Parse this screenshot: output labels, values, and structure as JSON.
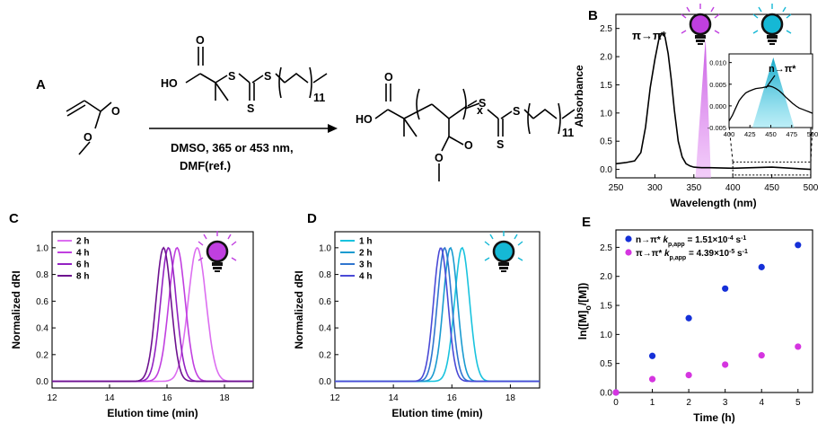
{
  "colors": {
    "purple": "#c03fe0",
    "purple_light": "#dd7cf2",
    "cyan": "#15b8d5",
    "blue": "#1530d8",
    "magenta": "#d535e0",
    "c_curves": [
      "#dc6ef0",
      "#c13fe0",
      "#9322c2",
      "#6d128f"
    ],
    "d_curves": [
      "#19c3de",
      "#1a9bd0",
      "#3075cf",
      "#4a4ad6"
    ]
  },
  "panel_labels": {
    "a": "A",
    "b": "B",
    "c": "C",
    "d": "D",
    "e": "E"
  },
  "scheme": {
    "monomer_o1": "O",
    "monomer_o2": "O",
    "cta_ho": "HO",
    "cta_o": "O",
    "cta_s1": "S",
    "cta_s2": "S",
    "cta_s3": "S",
    "cta_sub": "11",
    "conditions_line1": "DMSO, 365 or 453 nm,",
    "conditions_line2": "DMF(ref.)",
    "prod_ho": "HO",
    "prod_o1": "O",
    "prod_o2": "O",
    "prod_o3": "O",
    "prod_s1": "S",
    "prod_s2": "S",
    "prod_s3": "S",
    "prod_x": "x",
    "prod_sub": "11"
  },
  "icons": [
    "purple-lightbulb-icon",
    "cyan-lightbulb-icon"
  ],
  "chart_data": [
    {
      "panel": "B",
      "type": "line",
      "xlabel": "Wavelength (nm)",
      "ylabel": "Absorbance",
      "xlim": [
        250,
        500
      ],
      "ylim": [
        -0.15,
        2.75
      ],
      "xticks": [
        "250",
        "300",
        "350",
        "400",
        "450",
        "500"
      ],
      "yticks": [
        "0.0",
        "0.5",
        "1.0",
        "1.5",
        "2.0",
        "2.5"
      ],
      "annotations": [
        "π→π*",
        "n→π*"
      ],
      "emission_bands": [
        {
          "center": 365,
          "color": "purple"
        },
        {
          "center": 453,
          "color": "cyan"
        }
      ],
      "series": [
        {
          "name": "Absorbance",
          "x": [
            250,
            262,
            274,
            282,
            288,
            294,
            300,
            305,
            309,
            313,
            317,
            321,
            325,
            330,
            335,
            340,
            345,
            350,
            355,
            360,
            370,
            400,
            450,
            500
          ],
          "y": [
            0.1,
            0.12,
            0.15,
            0.3,
            0.75,
            1.45,
            1.95,
            2.3,
            2.42,
            2.35,
            2.05,
            1.6,
            1.05,
            0.5,
            0.22,
            0.1,
            0.06,
            0.04,
            0.035,
            0.03,
            0.03,
            0.02,
            0.04,
            0.0
          ]
        }
      ],
      "inset": {
        "xlim": [
          400,
          500
        ],
        "ylim": [
          -0.005,
          0.012
        ],
        "xticks": [
          "400",
          "425",
          "450",
          "475",
          "500"
        ],
        "yticks": [
          "-0.005",
          "0.000",
          "0.005",
          "0.010"
        ],
        "x": [
          400,
          404,
          408,
          412,
          416,
          420,
          424,
          428,
          432,
          436,
          440,
          444,
          448,
          452,
          456,
          460,
          464,
          468,
          472,
          476,
          480,
          484,
          488,
          492,
          496,
          500
        ],
        "y": [
          -0.0035,
          -0.0022,
          -0.0005,
          0.0012,
          0.0022,
          0.003,
          0.0034,
          0.0037,
          0.004,
          0.0041,
          0.0042,
          0.0044,
          0.0046,
          0.0044,
          0.004,
          0.0035,
          0.0028,
          0.002,
          0.0013,
          0.0006,
          0.0,
          -0.0005,
          -0.0008,
          -0.0011,
          -0.0014,
          -0.0017
        ]
      }
    },
    {
      "panel": "C",
      "type": "line",
      "xlabel": "Elution time (min)",
      "ylabel": "Normalized dRI",
      "xlim": [
        12,
        19
      ],
      "ylim": [
        -0.05,
        1.12
      ],
      "xticks": [
        "12",
        "14",
        "16",
        "18"
      ],
      "yticks": [
        "0.0",
        "0.2",
        "0.4",
        "0.6",
        "0.8",
        "1.0"
      ],
      "series": [
        {
          "name": "2 h",
          "peak": 17.05,
          "width": 0.46
        },
        {
          "name": "4 h",
          "peak": 16.35,
          "width": 0.42
        },
        {
          "name": "6 h",
          "peak": 16.05,
          "width": 0.4
        },
        {
          "name": "8 h",
          "peak": 15.88,
          "width": 0.39
        }
      ]
    },
    {
      "panel": "D",
      "type": "line",
      "xlabel": "Elution time (min)",
      "ylabel": "Normalized dRI",
      "xlim": [
        12,
        19
      ],
      "ylim": [
        -0.05,
        1.12
      ],
      "xticks": [
        "12",
        "14",
        "16",
        "18"
      ],
      "yticks": [
        "0.0",
        "0.2",
        "0.4",
        "0.6",
        "0.8",
        "1.0"
      ],
      "series": [
        {
          "name": "1 h",
          "peak": 16.35,
          "width": 0.38
        },
        {
          "name": "2 h",
          "peak": 15.95,
          "width": 0.36
        },
        {
          "name": "3 h",
          "peak": 15.75,
          "width": 0.36
        },
        {
          "name": "4 h",
          "peak": 15.62,
          "width": 0.36
        }
      ]
    },
    {
      "panel": "E",
      "type": "scatter",
      "xlabel": "Time (h)",
      "ylabel": "ln([M]o/[M])",
      "ylabel_parts": {
        "pre": "ln([M]",
        "sub": "o",
        "post": "/[M])"
      },
      "xlim": [
        0,
        5.4
      ],
      "ylim": [
        0,
        2.8
      ],
      "xticks": [
        "0",
        "1",
        "2",
        "3",
        "4",
        "5"
      ],
      "yticks": [
        "0.0",
        "0.5",
        "1.0",
        "1.5",
        "2.0",
        "2.5"
      ],
      "legend": [
        {
          "prefix": "n→π* ",
          "k": "k",
          "sub": "p,app",
          "value": " = 1.51×10",
          "exp": "-4",
          "unit": " s",
          "unit_exp": "-1"
        },
        {
          "prefix": "π→π* ",
          "k": "k",
          "sub": "p,app",
          "value": " = 4.39×10",
          "exp": "-5",
          "unit": " s",
          "unit_exp": "-1"
        }
      ],
      "series": [
        {
          "name": "n→π*",
          "x": [
            0,
            1,
            2,
            3,
            4,
            5
          ],
          "y": [
            0.0,
            0.63,
            1.28,
            1.79,
            2.16,
            2.54
          ]
        },
        {
          "name": "π→π*",
          "x": [
            0,
            1,
            2,
            3,
            4,
            5
          ],
          "y": [
            0.0,
            0.23,
            0.3,
            0.48,
            0.64,
            0.79
          ]
        }
      ]
    }
  ]
}
